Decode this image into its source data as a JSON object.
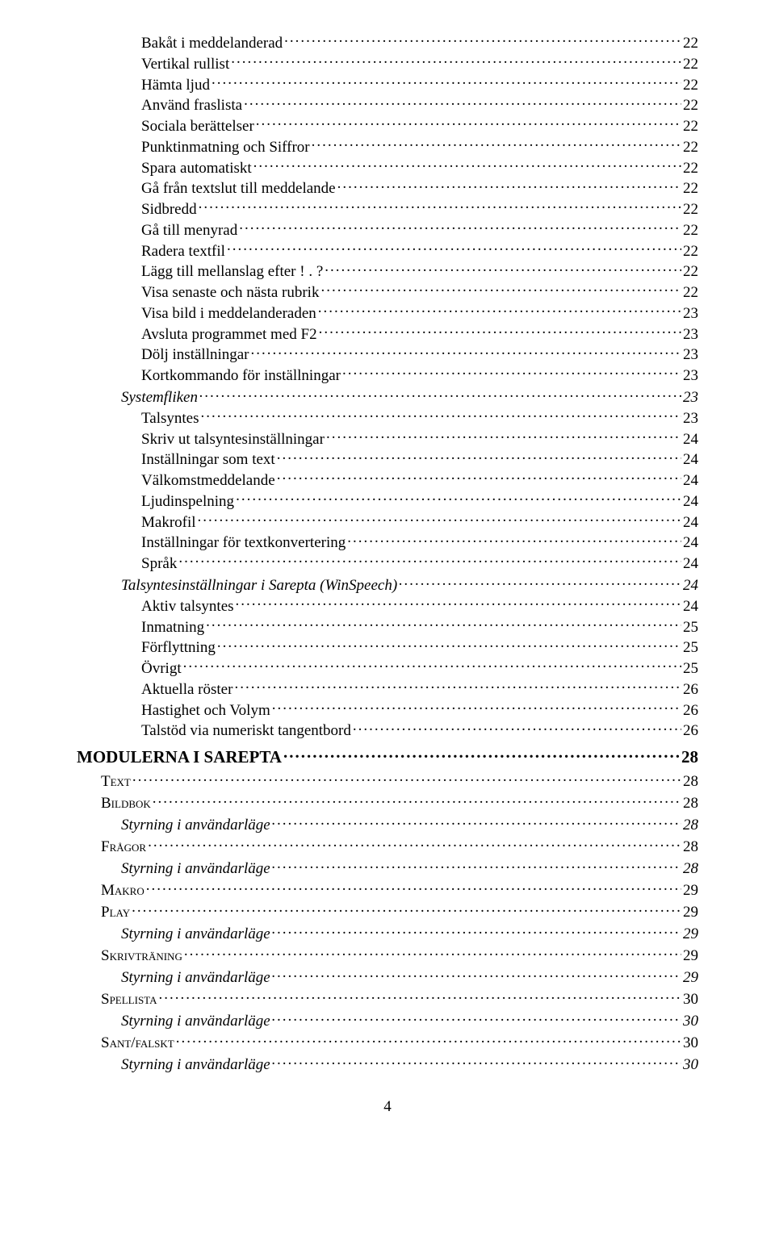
{
  "font_family": "Times New Roman",
  "text_color": "#000000",
  "background_color": "#ffffff",
  "dot_leader_char": ".",
  "page_number": "4",
  "toc": [
    {
      "level": 3,
      "label": "Bakåt i meddelanderad",
      "page": "22"
    },
    {
      "level": 3,
      "label": "Vertikal rullist",
      "page": "22"
    },
    {
      "level": 3,
      "label": "Hämta ljud",
      "page": "22"
    },
    {
      "level": 3,
      "label": "Använd fraslista",
      "page": "22"
    },
    {
      "level": 3,
      "label": "Sociala berättelser",
      "page": "22"
    },
    {
      "level": 3,
      "label": "Punktinmatning och Siffror",
      "page": "22"
    },
    {
      "level": 3,
      "label": "Spara automatiskt",
      "page": "22"
    },
    {
      "level": 3,
      "label": "Gå från textslut till meddelande",
      "page": "22"
    },
    {
      "level": 3,
      "label": "Sidbredd",
      "page": "22"
    },
    {
      "level": 3,
      "label": "Gå till menyrad",
      "page": "22"
    },
    {
      "level": 3,
      "label": "Radera textfil",
      "page": "22"
    },
    {
      "level": 3,
      "label": "Lägg till mellanslag efter ! . ?",
      "page": "22"
    },
    {
      "level": 3,
      "label": "Visa senaste och nästa rubrik",
      "page": "22"
    },
    {
      "level": 3,
      "label": "Visa bild i meddelanderaden",
      "page": "23"
    },
    {
      "level": 3,
      "label": "Avsluta programmet med F2",
      "page": "23"
    },
    {
      "level": 3,
      "label": "Dölj inställningar",
      "page": "23"
    },
    {
      "level": 3,
      "label": "Kortkommando för inställningar",
      "page": "23"
    },
    {
      "level": 2,
      "label": "Systemfliken",
      "page": "23"
    },
    {
      "level": 3,
      "label": "Talsyntes",
      "page": "23"
    },
    {
      "level": 3,
      "label": "Skriv ut talsyntesinställningar",
      "page": "24"
    },
    {
      "level": 3,
      "label": "Inställningar som text",
      "page": "24"
    },
    {
      "level": 3,
      "label": "Välkomstmeddelande",
      "page": "24"
    },
    {
      "level": 3,
      "label": "Ljudinspelning",
      "page": "24"
    },
    {
      "level": 3,
      "label": "Makrofil",
      "page": "24"
    },
    {
      "level": 3,
      "label": "Inställningar för textkonvertering",
      "page": "24"
    },
    {
      "level": 3,
      "label": "Språk",
      "page": "24"
    },
    {
      "level": 2,
      "label": "Talsyntesinställningar i Sarepta (WinSpeech)",
      "page": "24"
    },
    {
      "level": 3,
      "label": "Aktiv talsyntes",
      "page": "24"
    },
    {
      "level": 3,
      "label": "Inmatning",
      "page": "25"
    },
    {
      "level": 3,
      "label": "Förflyttning",
      "page": "25"
    },
    {
      "level": 3,
      "label": "Övrigt",
      "page": "25"
    },
    {
      "level": 3,
      "label": "Aktuella röster",
      "page": "26"
    },
    {
      "level": 3,
      "label": "Hastighet och Volym",
      "page": "26"
    },
    {
      "level": 3,
      "label": "Talstöd via numeriskt tangentbord",
      "page": "26"
    },
    {
      "level": 0,
      "label": "MODULERNA I SAREPTA",
      "page": "28"
    },
    {
      "level": 1,
      "label": "Text",
      "page": "28"
    },
    {
      "level": 1,
      "label": "Bildbok",
      "page": "28"
    },
    {
      "level": 2,
      "label": "Styrning i användarläge",
      "page": "28"
    },
    {
      "level": 1,
      "label": "Frågor",
      "page": "28"
    },
    {
      "level": 2,
      "label": "Styrning i användarläge",
      "page": "28"
    },
    {
      "level": 1,
      "label": "Makro",
      "page": "29"
    },
    {
      "level": 1,
      "label": "Play",
      "page": "29"
    },
    {
      "level": 2,
      "label": "Styrning i användarläge",
      "page": "29"
    },
    {
      "level": 1,
      "label": "Skrivträning",
      "page": "29"
    },
    {
      "level": 2,
      "label": "Styrning i användarläge",
      "page": "29"
    },
    {
      "level": 1,
      "label": "Spellista",
      "page": "30"
    },
    {
      "level": 2,
      "label": "Styrning i användarläge",
      "page": "30"
    },
    {
      "level": 1,
      "label": "Sant/falskt",
      "page": "30"
    },
    {
      "level": 2,
      "label": "Styrning i användarläge",
      "page": "30"
    }
  ]
}
